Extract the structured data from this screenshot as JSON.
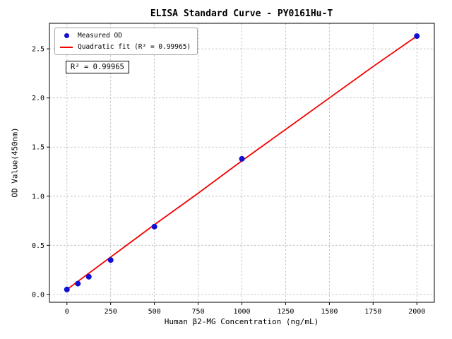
{
  "chart_data": {
    "type": "scatter",
    "title": "ELISA Standard Curve - PY0161Hu-T",
    "xlabel": "Human β2-MG Concentration (ng/mL)",
    "ylabel": "OD Value(450nm)",
    "xlim": [
      -100,
      2100
    ],
    "ylim": [
      -0.08,
      2.76
    ],
    "xticks": [
      0,
      250,
      500,
      750,
      1000,
      1250,
      1500,
      1750,
      2000
    ],
    "xtick_labels": [
      "0",
      "250",
      "500",
      "750",
      "1000",
      "1250",
      "1500",
      "1750",
      "2000"
    ],
    "yticks": [
      0.0,
      0.5,
      1.0,
      1.5,
      2.0,
      2.5
    ],
    "ytick_labels": [
      "0.0",
      "0.5",
      "1.0",
      "1.5",
      "2.0",
      "2.5"
    ],
    "grid": true,
    "legend_position": "upper-left",
    "series": [
      {
        "name": "Measured OD",
        "type": "scatter",
        "color": "#0f0fd6",
        "x": [
          0,
          62.5,
          125,
          250,
          500,
          1000,
          2000
        ],
        "y": [
          0.05,
          0.11,
          0.18,
          0.35,
          0.69,
          1.38,
          2.63
        ]
      },
      {
        "name": "Quadratic fit (R² = 0.99965)",
        "type": "line",
        "color": "#f40000",
        "x": [
          0,
          250,
          500,
          750,
          1000,
          1250,
          1500,
          1750,
          2000
        ],
        "y": [
          0.05,
          0.38,
          0.71,
          1.03,
          1.36,
          1.68,
          2.0,
          2.32,
          2.63
        ]
      }
    ],
    "annotation": "R² = 0.99965"
  },
  "colors": {
    "background": "#ffffff",
    "grid": "#b3b3b3",
    "axis": "#000000",
    "text": "#000000"
  }
}
